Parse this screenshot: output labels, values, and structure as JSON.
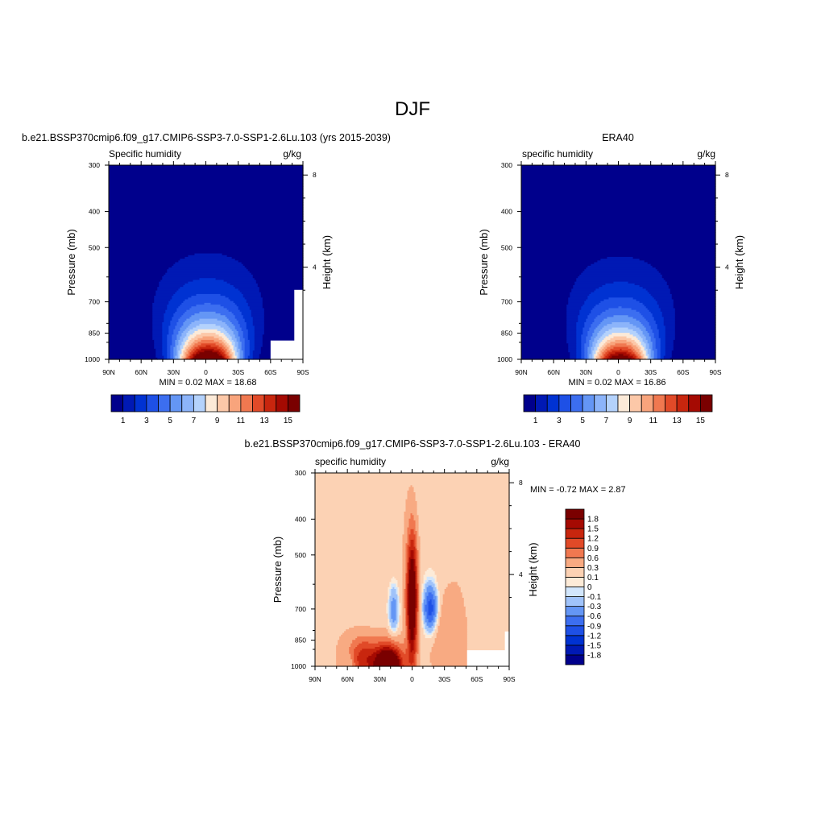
{
  "figure": {
    "season_title": "DJF"
  },
  "chart_data": [
    {
      "type": "heatmap",
      "id": "model",
      "title": "b.e21.BSSP370cmip6.f09_g17.CMIP6-SSP3-7.0-SSP1-2.6Lu.103 (yrs 2015-2039)",
      "left_label": "Specific humidity",
      "right_label": "g/kg",
      "xlabel": "",
      "ylabel": "Pressure (mb)",
      "y2label": "Height (km)",
      "xticks": [
        "90N",
        "60N",
        "30N",
        "0",
        "30S",
        "60S",
        "90S"
      ],
      "xlim": [
        90,
        -90
      ],
      "yticks": [
        300,
        400,
        500,
        700,
        850,
        1000
      ],
      "ylim": [
        300,
        1000
      ],
      "yscale": "log",
      "y2ticks": [
        8,
        4
      ],
      "stats": "MIN =   0.02  MAX =  18.68",
      "min": 0.02,
      "max": 18.68,
      "field": {
        "kind": "humidity",
        "peak": 18.68,
        "center_lat": -2,
        "mask_regions": [
          {
            "lat": [
              -60,
              -90
            ],
            "p": [
              890,
              1000
            ]
          },
          {
            "lat": [
              -82,
              -90
            ],
            "p": [
              650,
              890
            ]
          }
        ],
        "mask_lines": [
          {
            "lat": -68,
            "p": [
              918,
              1000
            ]
          }
        ]
      },
      "colorbar": {
        "orientation": "horizontal",
        "levels": [
          1,
          2,
          3,
          4,
          5,
          6,
          7,
          8,
          9,
          10,
          11,
          12,
          13,
          14,
          15
        ],
        "labels": [
          "1",
          "3",
          "5",
          "7",
          "9",
          "11",
          "13",
          "15"
        ],
        "colors": [
          "#00008c",
          "#0019b4",
          "#0032d2",
          "#1e50e6",
          "#3c6ef0",
          "#6496f5",
          "#8cb4fa",
          "#b4d2fc",
          "#fcead8",
          "#fcc8a8",
          "#f8a47c",
          "#f07850",
          "#e14a28",
          "#c8260e",
          "#a50a02",
          "#7a0000"
        ]
      }
    },
    {
      "type": "heatmap",
      "id": "obs",
      "title": "ERA40",
      "left_label": "specific humidity",
      "right_label": "g/kg",
      "xlabel": "",
      "ylabel": "Pressure (mb)",
      "y2label": "Height (km)",
      "xticks": [
        "90N",
        "60N",
        "30N",
        "0",
        "30S",
        "60S",
        "90S"
      ],
      "xlim": [
        90,
        -90
      ],
      "yticks": [
        300,
        400,
        500,
        700,
        850,
        1000
      ],
      "ylim": [
        300,
        1000
      ],
      "yscale": "log",
      "y2ticks": [
        8,
        4
      ],
      "stats": "MIN =   0.02  MAX =  16.86",
      "min": 0.02,
      "max": 16.86,
      "field": {
        "kind": "humidity",
        "peak": 16.86,
        "center_lat": -2,
        "mask_regions": [],
        "mask_lines": []
      },
      "colorbar": {
        "orientation": "horizontal",
        "levels": [
          1,
          2,
          3,
          4,
          5,
          6,
          7,
          8,
          9,
          10,
          11,
          12,
          13,
          14,
          15
        ],
        "labels": [
          "1",
          "3",
          "5",
          "7",
          "9",
          "11",
          "13",
          "15"
        ],
        "colors": [
          "#00008c",
          "#0019b4",
          "#0032d2",
          "#1e50e6",
          "#3c6ef0",
          "#6496f5",
          "#8cb4fa",
          "#b4d2fc",
          "#fcead8",
          "#fcc8a8",
          "#f8a47c",
          "#f07850",
          "#e14a28",
          "#c8260e",
          "#a50a02",
          "#7a0000"
        ]
      }
    },
    {
      "type": "heatmap",
      "id": "diff",
      "title": "b.e21.BSSP370cmip6.f09_g17.CMIP6-SSP3-7.0-SSP1-2.6Lu.103 - ERA40",
      "left_label": "specific humidity",
      "right_label": "g/kg",
      "xlabel": "",
      "ylabel": "Pressure (mb)",
      "y2label": "Height (km)",
      "xticks": [
        "90N",
        "60N",
        "30N",
        "0",
        "30S",
        "60S",
        "90S"
      ],
      "xlim": [
        90,
        -90
      ],
      "yticks": [
        300,
        400,
        500,
        700,
        850,
        1000
      ],
      "ylim": [
        300,
        1000
      ],
      "yscale": "log",
      "y2ticks": [
        8,
        4
      ],
      "stats": "MIN =  -0.72  MAX =   2.87",
      "min": -0.72,
      "max": 2.87,
      "field": {
        "kind": "difference",
        "mask_regions": [
          {
            "lat": [
              -51,
              -90
            ],
            "p": [
              905,
              1000
            ]
          },
          {
            "lat": [
              -86,
              -90
            ],
            "p": [
              805,
              905
            ]
          }
        ],
        "mask_lines": []
      },
      "colorbar": {
        "orientation": "vertical",
        "levels": [
          -1.8,
          -1.5,
          -1.2,
          -0.9,
          -0.6,
          -0.3,
          -0.1,
          0,
          0.1,
          0.3,
          0.6,
          0.9,
          1.2,
          1.5,
          1.8
        ],
        "labels": [
          "-1.8",
          "-1.5",
          "-1.2",
          "-0.9",
          "-0.6",
          "-0.3",
          "-0.1",
          "0",
          "0.1",
          "0.3",
          "0.6",
          "0.9",
          "1.2",
          "1.5",
          "1.8"
        ],
        "colors": [
          "#00008c",
          "#0019b4",
          "#0032d2",
          "#1e50e6",
          "#3c6ef0",
          "#6496f5",
          "#a0c3fa",
          "#d2e6fc",
          "#fdebd8",
          "#fcd2b4",
          "#f8aa82",
          "#f07850",
          "#e14a28",
          "#c8260e",
          "#a50a02",
          "#7a0000"
        ]
      }
    }
  ]
}
